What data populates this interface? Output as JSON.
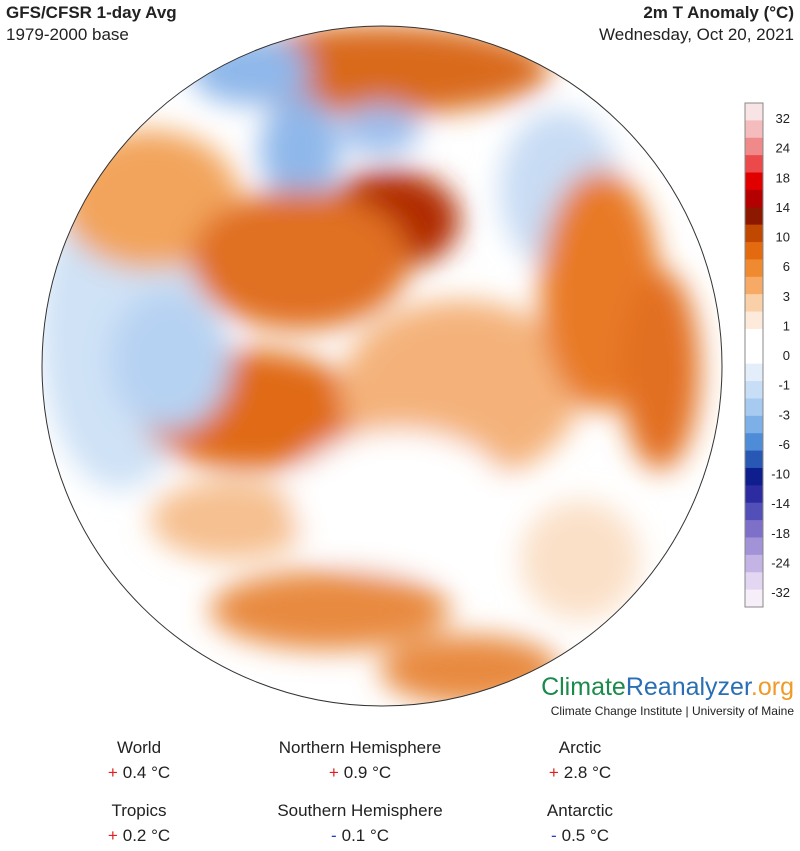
{
  "header": {
    "title_left": "GFS/CFSR 1-day Avg",
    "subtitle_left": "1979-2000 base",
    "title_right": "2m T Anomaly (°C)",
    "date": "Wednesday, Oct 20, 2021"
  },
  "colorbar": {
    "labels": [
      "32",
      "24",
      "18",
      "14",
      "10",
      "6",
      "3",
      "1",
      "0",
      "-1",
      "-3",
      "-6",
      "-10",
      "-14",
      "-18",
      "-24",
      "-32"
    ],
    "colors": [
      "#f8e4e4",
      "#f4bcbc",
      "#f08a8a",
      "#ec4a4a",
      "#e00000",
      "#b40000",
      "#8c1800",
      "#c04800",
      "#e46a10",
      "#f08a30",
      "#f6aa66",
      "#fad0a8",
      "#fdeadb",
      "#ffffff",
      "#ffffff",
      "#e4eefa",
      "#c8def6",
      "#a6caf0",
      "#7eb0e8",
      "#4e8cd8",
      "#2858b4",
      "#0e1e8c",
      "#2c2ca0",
      "#5250b8",
      "#7e70c8",
      "#a292d8",
      "#c4b4e6",
      "#e2d6f2",
      "#f6eef8"
    ]
  },
  "branding": {
    "part1": "Climate",
    "part2": "Reanalyzer",
    "part3": ".org",
    "affiliation": "Climate Change Institute | University of Maine"
  },
  "stats": [
    {
      "region": "World",
      "sign": "+",
      "value": "0.4 °C"
    },
    {
      "region": "Northern Hemisphere",
      "sign": "+",
      "value": "0.9 °C"
    },
    {
      "region": "Arctic",
      "sign": "+",
      "value": "2.8 °C"
    },
    {
      "region": "Tropics",
      "sign": "+",
      "value": "0.2 °C"
    },
    {
      "region": "Southern Hemisphere",
      "sign": "-",
      "value": "0.1 °C"
    },
    {
      "region": "Antarctic",
      "sign": "-",
      "value": "0.5 °C"
    }
  ]
}
